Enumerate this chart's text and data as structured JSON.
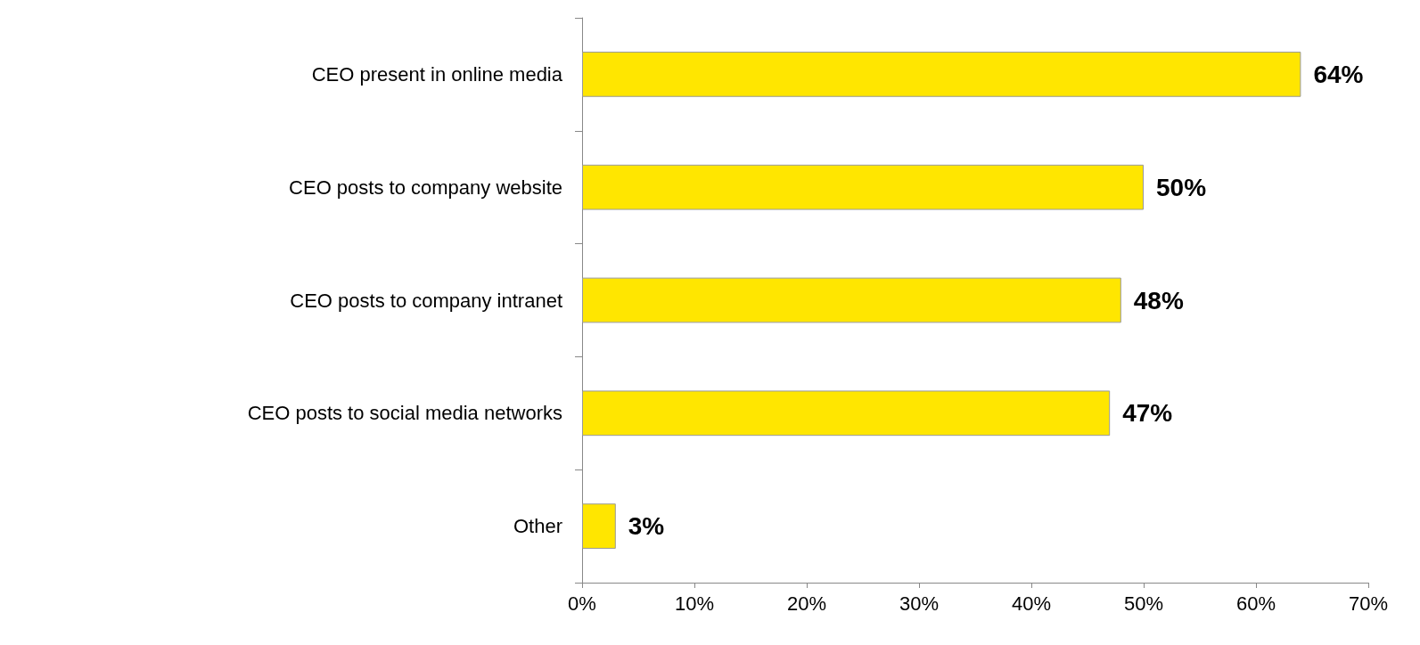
{
  "chart_data": {
    "type": "bar",
    "orientation": "horizontal",
    "categories": [
      "CEO present in online media",
      "CEO posts to company website",
      "CEO posts to company intranet",
      "CEO posts to social media networks",
      "Other"
    ],
    "values": [
      64,
      50,
      48,
      47,
      3
    ],
    "value_labels": [
      "64%",
      "50%",
      "48%",
      "47%",
      "3%"
    ],
    "color": "#ffe600",
    "xlim": [
      0,
      70
    ],
    "xticks": [
      {
        "value": 0,
        "label": "0%"
      },
      {
        "value": 10,
        "label": "10%"
      },
      {
        "value": 20,
        "label": "20%"
      },
      {
        "value": 30,
        "label": "30%"
      },
      {
        "value": 40,
        "label": "40%"
      },
      {
        "value": 50,
        "label": "50%"
      },
      {
        "value": 60,
        "label": "60%"
      },
      {
        "value": 70,
        "label": "70%"
      }
    ],
    "grid": false
  }
}
